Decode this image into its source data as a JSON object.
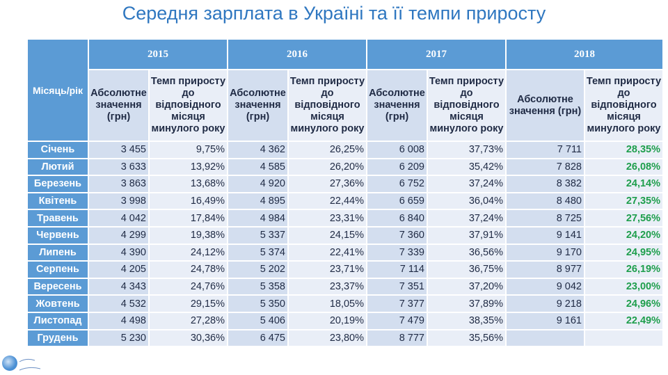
{
  "title": "Середня зарплата в Україні та її темпи приросту",
  "table": {
    "corner": "Місяць/рік",
    "years": [
      "2015",
      "2016",
      "2017",
      "2018"
    ],
    "abs_label": "Абсолютне значення (грн)",
    "pct_label": "Темп приросту до відповідного місяця минулого року",
    "rows": [
      {
        "month": "Січень",
        "values": [
          "3 455",
          "9,75%",
          "4 362",
          "26,25%",
          "6 008",
          "37,73%",
          "7 711",
          "28,35%"
        ]
      },
      {
        "month": "Лютий",
        "values": [
          "3 633",
          "13,92%",
          "4 585",
          "26,20%",
          "6 209",
          "35,42%",
          "7 828",
          "26,08%"
        ]
      },
      {
        "month": "Березень",
        "values": [
          "3 863",
          "13,68%",
          "4 920",
          "27,36%",
          "6 752",
          "37,24%",
          "8 382",
          "24,14%"
        ]
      },
      {
        "month": "Квітень",
        "values": [
          "3 998",
          "16,49%",
          "4 895",
          "22,44%",
          "6 659",
          "36,04%",
          "8 480",
          "27,35%"
        ]
      },
      {
        "month": "Травень",
        "values": [
          "4 042",
          "17,84%",
          "4 984",
          "23,31%",
          "6 840",
          "37,24%",
          "8 725",
          "27,56%"
        ]
      },
      {
        "month": "Червень",
        "values": [
          "4 299",
          "19,38%",
          "5 337",
          "24,15%",
          "7 360",
          "37,91%",
          "9 141",
          "24,20%"
        ]
      },
      {
        "month": "Липень",
        "values": [
          "4 390",
          "24,12%",
          "5 374",
          "22,41%",
          "7 339",
          "36,56%",
          "9 170",
          "24,95%"
        ]
      },
      {
        "month": "Серпень",
        "values": [
          "4 205",
          "24,78%",
          "5 202",
          "23,71%",
          "7 114",
          "36,75%",
          "8 977",
          "26,19%"
        ]
      },
      {
        "month": "Вересень",
        "values": [
          "4 343",
          "24,76%",
          "5 358",
          "23,37%",
          "7 351",
          "37,20%",
          "9 042",
          "23,00%"
        ]
      },
      {
        "month": "Жовтень",
        "values": [
          "4 532",
          "29,15%",
          "5 350",
          "18,05%",
          "7 377",
          "37,89%",
          "9 218",
          "24,96%"
        ]
      },
      {
        "month": "Листопад",
        "values": [
          "4 498",
          "27,28%",
          "5 406",
          "20,19%",
          "7 479",
          "38,35%",
          "9 161",
          "22,49%"
        ]
      },
      {
        "month": "Грудень",
        "values": [
          "5 230",
          "30,36%",
          "6 475",
          "23,80%",
          "8 777",
          "35,56%",
          "",
          ""
        ]
      }
    ]
  },
  "colors": {
    "header": "#5b9bd5",
    "title": "#2f77c0",
    "highlight_2018": "#1e9e4c"
  }
}
